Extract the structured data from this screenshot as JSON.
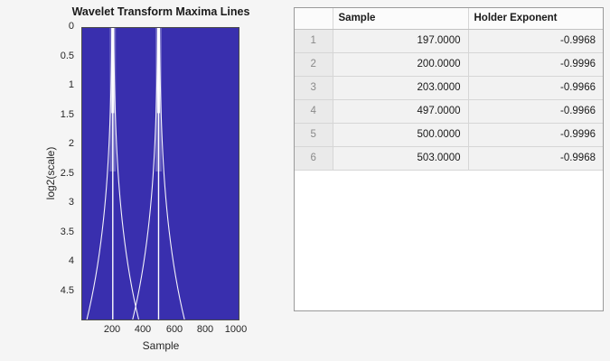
{
  "plot": {
    "title": "Wavelet Transform Maxima Lines",
    "xlabel": "Sample",
    "ylabel": "log2(scale)",
    "x_ticks": [
      "200",
      "400",
      "600",
      "800",
      "1000"
    ],
    "y_ticks": [
      "0",
      "0.5",
      "1",
      "1.5",
      "2",
      "2.5",
      "3",
      "3.5",
      "4",
      "4.5"
    ]
  },
  "table": {
    "columns": {
      "rownum": "",
      "sample": "Sample",
      "holder": "Holder Exponent"
    },
    "rows": [
      {
        "n": "1",
        "sample": "197.0000",
        "holder": "-0.9968"
      },
      {
        "n": "2",
        "sample": "200.0000",
        "holder": "-0.9996"
      },
      {
        "n": "3",
        "sample": "203.0000",
        "holder": "-0.9966"
      },
      {
        "n": "4",
        "sample": "497.0000",
        "holder": "-0.9966"
      },
      {
        "n": "5",
        "sample": "500.0000",
        "holder": "-0.9996"
      },
      {
        "n": "6",
        "sample": "503.0000",
        "holder": "-0.9968"
      }
    ]
  },
  "chart_data": {
    "type": "line",
    "title": "Wavelet Transform Maxima Lines",
    "xlabel": "Sample",
    "ylabel": "log2(scale)",
    "xlim": [
      0,
      1024
    ],
    "ylim": [
      0,
      5
    ],
    "y_axis_reversed": true,
    "x_ticks": [
      200,
      400,
      600,
      800,
      1000
    ],
    "y_ticks": [
      0,
      0.5,
      1,
      1.5,
      2,
      2.5,
      3,
      3.5,
      4,
      4.5
    ],
    "background_color": "#392fae",
    "line_color": "#ffffff",
    "maxima_centers": [
      200,
      500
    ],
    "maxima_lines": [
      {
        "center": 200,
        "samples_at_scale0": [
          197,
          200,
          203
        ]
      },
      {
        "center": 500,
        "samples_at_scale0": [
          497,
          500,
          503
        ]
      }
    ],
    "holder_exponents": [
      {
        "sample": 197,
        "holder_exponent": -0.9968
      },
      {
        "sample": 200,
        "holder_exponent": -0.9996
      },
      {
        "sample": 203,
        "holder_exponent": -0.9966
      },
      {
        "sample": 497,
        "holder_exponent": -0.9966
      },
      {
        "sample": 500,
        "holder_exponent": -0.9996
      },
      {
        "sample": 503,
        "holder_exponent": -0.9968
      }
    ]
  }
}
